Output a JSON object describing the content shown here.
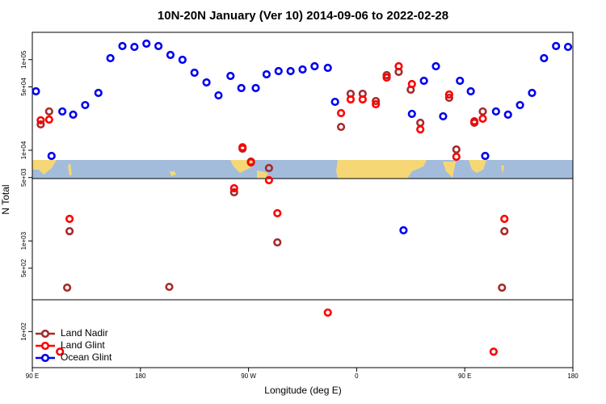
{
  "chart_data": {
    "type": "scatter",
    "title": "10N-20N January (Ver 10)   2014-09-06 to 2022-02-28",
    "x_label": "Longitude (deg E)",
    "y_label": "N Total",
    "log_y": true,
    "legend": "bottom-left",
    "xlim": [
      90,
      540
    ],
    "xticks": [
      {
        "value": 90,
        "label": "90 E"
      },
      {
        "value": 180,
        "label": "180"
      },
      {
        "value": 270,
        "label": "90 W"
      },
      {
        "value": 360,
        "label": "0"
      },
      {
        "value": 450,
        "label": "90 E"
      },
      {
        "value": 540,
        "label": "180"
      }
    ],
    "ylim": [
      40,
      200000
    ],
    "yticks": [
      {
        "value": 100,
        "label": "1e+02"
      },
      {
        "value": 500,
        "label": "5e+02"
      },
      {
        "value": 1000,
        "label": "1e+03"
      },
      {
        "value": 5000,
        "label": "5e+03"
      },
      {
        "value": 10000,
        "label": "1e+04"
      },
      {
        "value": 50000,
        "label": "5e+04"
      },
      {
        "value": 100000,
        "label": "1e+05"
      }
    ],
    "series": [
      {
        "name": "Land Nadir",
        "color": "#a52a2a",
        "x": [
          97,
          104,
          119,
          121,
          204,
          258,
          265,
          272,
          287,
          294,
          347,
          355,
          365,
          376,
          385,
          395,
          405,
          413,
          437,
          443,
          458,
          465,
          481,
          483
        ],
        "values": [
          19300,
          26800,
          305,
          1280,
          311,
          3440,
          10400,
          7500,
          6360,
          963,
          18100,
          42000,
          42000,
          34900,
          67400,
          73200,
          46600,
          20100,
          37900,
          10200,
          20100,
          26800,
          305,
          1280
        ]
      },
      {
        "name": "Land Glint",
        "color": "#ff0000",
        "x": [
          97,
          104,
          113,
          121,
          265,
          272,
          258,
          287,
          294,
          336,
          347,
          355,
          365,
          376,
          385,
          395,
          406,
          413,
          437,
          443,
          458,
          465,
          474,
          483
        ],
        "values": [
          21400,
          21800,
          60,
          1750,
          10800,
          7350,
          3810,
          4680,
          2020,
          162,
          25700,
          36400,
          36400,
          32200,
          63400,
          84500,
          53800,
          17000,
          41200,
          8480,
          20900,
          22300,
          60,
          1750
        ]
      },
      {
        "name": "Ocean Glint",
        "color": "#0000ee",
        "x": [
          93,
          106,
          115,
          124,
          134,
          145,
          155,
          165,
          175,
          185,
          195,
          205,
          215,
          225,
          235,
          245,
          255,
          264,
          276,
          285,
          295,
          305,
          315,
          325,
          336,
          342,
          399,
          406,
          416,
          426,
          432,
          446,
          455,
          467,
          476,
          486,
          496,
          506,
          516,
          526,
          536
        ],
        "values": [
          44700,
          8650,
          26800,
          24700,
          31500,
          42900,
          103700,
          141000,
          138000,
          150000,
          141000,
          112600,
          99500,
          71700,
          56000,
          40300,
          66000,
          48500,
          48500,
          68800,
          74700,
          74700,
          77800,
          84500,
          81100,
          34200,
          1310,
          25200,
          58400,
          84500,
          23700,
          58400,
          44700,
          8650,
          26800,
          24700,
          31500,
          42900,
          103700,
          141000,
          138000
        ]
      }
    ]
  }
}
